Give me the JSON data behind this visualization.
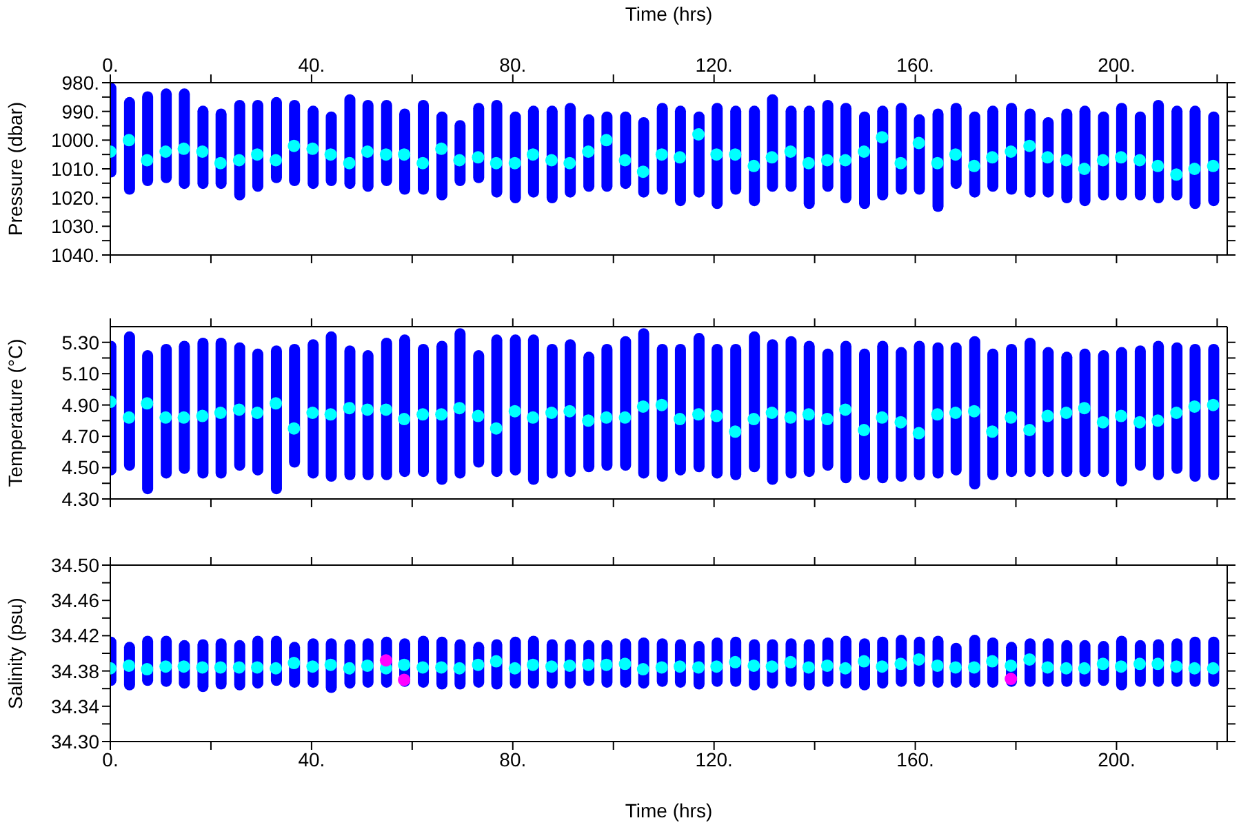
{
  "chart_data": [
    {
      "type": "bar",
      "xlabel": "Time (hrs)",
      "ylabel": "Pressure (dbar)",
      "marker": "circle",
      "x": [
        0,
        3.7,
        7.3,
        11.0,
        14.6,
        18.3,
        21.9,
        25.6,
        29.2,
        32.9,
        36.5,
        40.2,
        43.8,
        47.5,
        51.1,
        54.8,
        58.4,
        62.1,
        65.8,
        69.4,
        73.1,
        76.7,
        80.4,
        84.0,
        87.7,
        91.3,
        95.0,
        98.6,
        102.3,
        105.9,
        109.6,
        113.2,
        116.9,
        120.5,
        124.2,
        127.9,
        131.5,
        135.2,
        138.8,
        142.5,
        146.1,
        149.8,
        153.4,
        157.1,
        160.7,
        164.4,
        168.0,
        171.7,
        175.3,
        179.0,
        182.7,
        186.3,
        190.0,
        193.6,
        197.3,
        200.9,
        204.6,
        208.2,
        211.9,
        215.5,
        219.2
      ],
      "xlim": [
        0,
        222
      ],
      "xticks": [
        {
          "value": 0,
          "label": "0."
        },
        {
          "value": 20,
          "label": null
        },
        {
          "value": 40,
          "label": "40."
        },
        {
          "value": 60,
          "label": null
        },
        {
          "value": 80,
          "label": "80."
        },
        {
          "value": 100,
          "label": null
        },
        {
          "value": 120,
          "label": "120."
        },
        {
          "value": 140,
          "label": null
        },
        {
          "value": 160,
          "label": "160."
        },
        {
          "value": 180,
          "label": null
        },
        {
          "value": 200,
          "label": "200."
        },
        {
          "value": 220,
          "label": null
        }
      ],
      "ylim": [
        1040,
        980
      ],
      "yticks": [
        {
          "value": 980,
          "label": "980."
        },
        {
          "value": 985,
          "label": null
        },
        {
          "value": 990,
          "label": "990."
        },
        {
          "value": 995,
          "label": null
        },
        {
          "value": 1000,
          "label": "1000."
        },
        {
          "value": 1005,
          "label": null
        },
        {
          "value": 1010,
          "label": "1010."
        },
        {
          "value": 1015,
          "label": null
        },
        {
          "value": 1020,
          "label": "1020."
        },
        {
          "value": 1025,
          "label": null
        },
        {
          "value": 1030,
          "label": "1030."
        },
        {
          "value": 1035,
          "label": null
        },
        {
          "value": 1040,
          "label": "1040."
        }
      ],
      "series": [
        {
          "type": "bar",
          "color": "#0000ff",
          "base": [
            980,
            985,
            983,
            982,
            982,
            988,
            989,
            986,
            986,
            985,
            986,
            988,
            990,
            984,
            986,
            986,
            989,
            986,
            990,
            993,
            987,
            986,
            990,
            988,
            988,
            987,
            991,
            990,
            990,
            992,
            987,
            988,
            990,
            987,
            988,
            988,
            984,
            988,
            988,
            986,
            987,
            990,
            988,
            987,
            991,
            989,
            987,
            990,
            988,
            987,
            989,
            992,
            989,
            988,
            990,
            987,
            990,
            986,
            988,
            988,
            990
          ],
          "values": [
            33,
            34,
            33,
            33,
            35,
            29,
            28,
            35,
            32,
            30,
            30,
            29,
            26,
            33,
            32,
            30,
            30,
            33,
            31,
            23,
            28,
            34,
            32,
            32,
            34,
            33,
            27,
            28,
            27,
            28,
            32,
            35,
            30,
            37,
            31,
            35,
            34,
            30,
            36,
            32,
            35,
            34,
            33,
            32,
            28,
            36,
            30,
            30,
            30,
            32,
            31,
            28,
            33,
            35,
            31,
            34,
            31,
            36,
            33,
            36,
            33
          ]
        },
        {
          "type": "scatter",
          "color": "#00ffff",
          "values": [
            1004,
            1000,
            1007,
            1004,
            1003,
            1004,
            1008,
            1007,
            1005,
            1007,
            1002,
            1003,
            1005,
            1008,
            1004,
            1005,
            1005,
            1008,
            1003,
            1007,
            1006,
            1008,
            1008,
            1005,
            1007,
            1008,
            1004,
            1000,
            1007,
            1011,
            1005,
            1006,
            998,
            1005,
            1005,
            1009,
            1006,
            1004,
            1008,
            1007,
            1007,
            1004,
            999,
            1008,
            1001,
            1008,
            1005,
            1009,
            1006,
            1004,
            1002,
            1006,
            1007,
            1010,
            1007,
            1006,
            1007,
            1009,
            1012,
            1010,
            1009
          ]
        }
      ]
    },
    {
      "type": "bar",
      "ylabel": "Temperature (°C)",
      "marker": "circle",
      "tick_labels": "y",
      "x": [
        0,
        3.7,
        7.3,
        11.0,
        14.6,
        18.3,
        21.9,
        25.6,
        29.2,
        32.9,
        36.5,
        40.2,
        43.8,
        47.5,
        51.1,
        54.8,
        58.4,
        62.1,
        65.8,
        69.4,
        73.1,
        76.7,
        80.4,
        84.0,
        87.7,
        91.3,
        95.0,
        98.6,
        102.3,
        105.9,
        109.6,
        113.2,
        116.9,
        120.5,
        124.2,
        127.9,
        131.5,
        135.2,
        138.8,
        142.5,
        146.1,
        149.8,
        153.4,
        157.1,
        160.7,
        164.4,
        168.0,
        171.7,
        175.3,
        179.0,
        182.7,
        186.3,
        190.0,
        193.6,
        197.3,
        200.9,
        204.6,
        208.2,
        211.9,
        215.5,
        219.2
      ],
      "xlim": [
        0,
        222
      ],
      "xticks": [
        0,
        20,
        40,
        60,
        80,
        100,
        120,
        140,
        160,
        180,
        200,
        220
      ],
      "ylim": [
        4.3,
        5.4
      ],
      "yticks": [
        {
          "value": 4.3,
          "label": "4.30"
        },
        {
          "value": 4.4,
          "label": null
        },
        {
          "value": 4.5,
          "label": "4.50"
        },
        {
          "value": 4.6,
          "label": null
        },
        {
          "value": 4.7,
          "label": "4.70"
        },
        {
          "value": 4.8,
          "label": null
        },
        {
          "value": 4.9,
          "label": "4.90"
        },
        {
          "value": 5.0,
          "label": null
        },
        {
          "value": 5.1,
          "label": "5.10"
        },
        {
          "value": 5.2,
          "label": null
        },
        {
          "value": 5.3,
          "label": "5.30"
        }
      ],
      "series": [
        {
          "type": "bar",
          "color": "#0000ff",
          "base": [
            4.45,
            4.48,
            4.33,
            4.43,
            4.46,
            4.43,
            4.43,
            4.48,
            4.45,
            4.33,
            4.5,
            4.43,
            4.41,
            4.42,
            4.42,
            4.42,
            4.44,
            4.44,
            4.39,
            4.43,
            4.5,
            4.44,
            4.45,
            4.39,
            4.43,
            4.44,
            4.47,
            4.48,
            4.48,
            4.43,
            4.41,
            4.45,
            4.47,
            4.43,
            4.42,
            4.47,
            4.39,
            4.43,
            4.44,
            4.48,
            4.4,
            4.42,
            4.4,
            4.41,
            4.42,
            4.43,
            4.45,
            4.36,
            4.42,
            4.44,
            4.44,
            4.44,
            4.44,
            4.44,
            4.44,
            4.38,
            4.48,
            4.42,
            4.46,
            4.41,
            4.42
          ],
          "values": [
            0.86,
            0.89,
            0.92,
            0.86,
            0.85,
            0.9,
            0.9,
            0.82,
            0.81,
            0.95,
            0.79,
            0.89,
            0.96,
            0.86,
            0.83,
            0.91,
            0.91,
            0.85,
            0.92,
            0.96,
            0.75,
            0.91,
            0.9,
            0.96,
            0.86,
            0.88,
            0.77,
            0.81,
            0.86,
            0.96,
            0.88,
            0.84,
            0.89,
            0.86,
            0.87,
            0.9,
            0.93,
            0.91,
            0.87,
            0.78,
            0.91,
            0.84,
            0.91,
            0.86,
            0.89,
            0.87,
            0.85,
            0.98,
            0.84,
            0.85,
            0.89,
            0.83,
            0.8,
            0.82,
            0.81,
            0.89,
            0.8,
            0.89,
            0.84,
            0.88,
            0.87
          ]
        },
        {
          "type": "scatter",
          "color": "#00ffff",
          "values": [
            4.92,
            4.82,
            4.91,
            4.82,
            4.82,
            4.83,
            4.85,
            4.87,
            4.85,
            4.91,
            4.75,
            4.85,
            4.84,
            4.88,
            4.87,
            4.87,
            4.81,
            4.84,
            4.84,
            4.88,
            4.83,
            4.75,
            4.86,
            4.82,
            4.85,
            4.86,
            4.8,
            4.82,
            4.82,
            4.89,
            4.9,
            4.81,
            4.84,
            4.83,
            4.73,
            4.81,
            4.85,
            4.82,
            4.84,
            4.81,
            4.87,
            4.74,
            4.82,
            4.79,
            4.72,
            4.84,
            4.85,
            4.86,
            4.73,
            4.82,
            4.74,
            4.83,
            4.85,
            4.88,
            4.79,
            4.83,
            4.79,
            4.8,
            4.85,
            4.89,
            4.9
          ]
        }
      ]
    },
    {
      "type": "bar",
      "xlabel": "Time (hrs)",
      "ylabel": "Salinity (psu)",
      "marker": "circle",
      "x": [
        0,
        3.7,
        7.3,
        11.0,
        14.6,
        18.3,
        21.9,
        25.6,
        29.2,
        32.9,
        36.5,
        40.2,
        43.8,
        47.5,
        51.1,
        54.8,
        58.4,
        62.1,
        65.8,
        69.4,
        73.1,
        76.7,
        80.4,
        84.0,
        87.7,
        91.3,
        95.0,
        98.6,
        102.3,
        105.9,
        109.6,
        113.2,
        116.9,
        120.5,
        124.2,
        127.9,
        131.5,
        135.2,
        138.8,
        142.5,
        146.1,
        149.8,
        153.4,
        157.1,
        160.7,
        164.4,
        168.0,
        171.7,
        175.3,
        179.0,
        182.7,
        186.3,
        190.0,
        193.6,
        197.3,
        200.9,
        204.6,
        208.2,
        211.9,
        215.5,
        219.2
      ],
      "xlim": [
        0,
        222
      ],
      "xticks": [
        {
          "value": 0,
          "label": "0."
        },
        {
          "value": 20,
          "label": null
        },
        {
          "value": 40,
          "label": "40."
        },
        {
          "value": 60,
          "label": null
        },
        {
          "value": 80,
          "label": "80."
        },
        {
          "value": 100,
          "label": null
        },
        {
          "value": 120,
          "label": "120."
        },
        {
          "value": 140,
          "label": null
        },
        {
          "value": 160,
          "label": "160."
        },
        {
          "value": 180,
          "label": null
        },
        {
          "value": 200,
          "label": "200."
        },
        {
          "value": 220,
          "label": null
        }
      ],
      "ylim": [
        34.3,
        34.5
      ],
      "yticks": [
        {
          "value": 34.3,
          "label": "34.30"
        },
        {
          "value": 34.32,
          "label": null
        },
        {
          "value": 34.34,
          "label": "34.34"
        },
        {
          "value": 34.36,
          "label": null
        },
        {
          "value": 34.38,
          "label": "34.38"
        },
        {
          "value": 34.4,
          "label": null
        },
        {
          "value": 34.42,
          "label": "34.42"
        },
        {
          "value": 34.44,
          "label": null
        },
        {
          "value": 34.46,
          "label": "34.46"
        },
        {
          "value": 34.48,
          "label": null
        },
        {
          "value": 34.5,
          "label": "34.50"
        }
      ],
      "series": [
        {
          "type": "bar",
          "color": "#0000ff",
          "base": [
            34.363,
            34.358,
            34.363,
            34.362,
            34.36,
            34.356,
            34.359,
            34.358,
            34.36,
            34.363,
            34.361,
            34.361,
            34.355,
            34.36,
            34.361,
            34.361,
            34.362,
            34.361,
            34.359,
            34.359,
            34.361,
            34.359,
            34.36,
            34.36,
            34.36,
            34.36,
            34.363,
            34.361,
            34.361,
            34.36,
            34.362,
            34.361,
            34.359,
            34.362,
            34.362,
            34.358,
            34.36,
            34.362,
            34.358,
            34.362,
            34.36,
            34.358,
            34.36,
            34.362,
            34.362,
            34.361,
            34.361,
            34.361,
            34.361,
            34.362,
            34.362,
            34.362,
            34.362,
            34.362,
            34.363,
            34.358,
            34.362,
            34.362,
            34.362,
            34.362,
            34.362
          ],
          "values": [
            0.056,
            0.055,
            0.057,
            0.058,
            0.055,
            0.06,
            0.058,
            0.057,
            0.06,
            0.057,
            0.052,
            0.056,
            0.062,
            0.056,
            0.056,
            0.058,
            0.055,
            0.059,
            0.06,
            0.057,
            0.052,
            0.057,
            0.059,
            0.06,
            0.056,
            0.056,
            0.052,
            0.054,
            0.056,
            0.058,
            0.055,
            0.055,
            0.055,
            0.056,
            0.057,
            0.058,
            0.056,
            0.055,
            0.058,
            0.056,
            0.06,
            0.059,
            0.059,
            0.059,
            0.057,
            0.059,
            0.051,
            0.06,
            0.057,
            0.051,
            0.055,
            0.055,
            0.053,
            0.053,
            0.051,
            0.062,
            0.053,
            0.054,
            0.055,
            0.057,
            0.057
          ]
        },
        {
          "type": "scatter",
          "color": "#00ffff",
          "values": [
            34.383,
            34.386,
            34.382,
            34.385,
            34.385,
            34.384,
            34.384,
            34.384,
            34.384,
            34.383,
            34.389,
            34.385,
            34.387,
            34.383,
            34.386,
            34.383,
            34.387,
            34.384,
            34.384,
            34.383,
            34.387,
            34.391,
            34.383,
            34.387,
            34.385,
            34.386,
            34.387,
            34.387,
            34.388,
            34.382,
            34.384,
            34.385,
            34.384,
            34.385,
            34.39,
            34.386,
            34.385,
            34.39,
            34.384,
            34.386,
            34.383,
            34.391,
            34.385,
            34.388,
            34.393,
            34.386,
            34.384,
            34.384,
            34.391,
            34.386,
            34.393,
            34.384,
            34.383,
            34.383,
            34.388,
            34.385,
            34.388,
            34.388,
            34.385,
            34.383,
            34.383
          ]
        },
        {
          "type": "scatter",
          "color": "#ff00ff",
          "x": [
            54.8,
            58.4,
            179.0
          ],
          "values": [
            34.392,
            34.37,
            34.371
          ]
        }
      ]
    }
  ]
}
